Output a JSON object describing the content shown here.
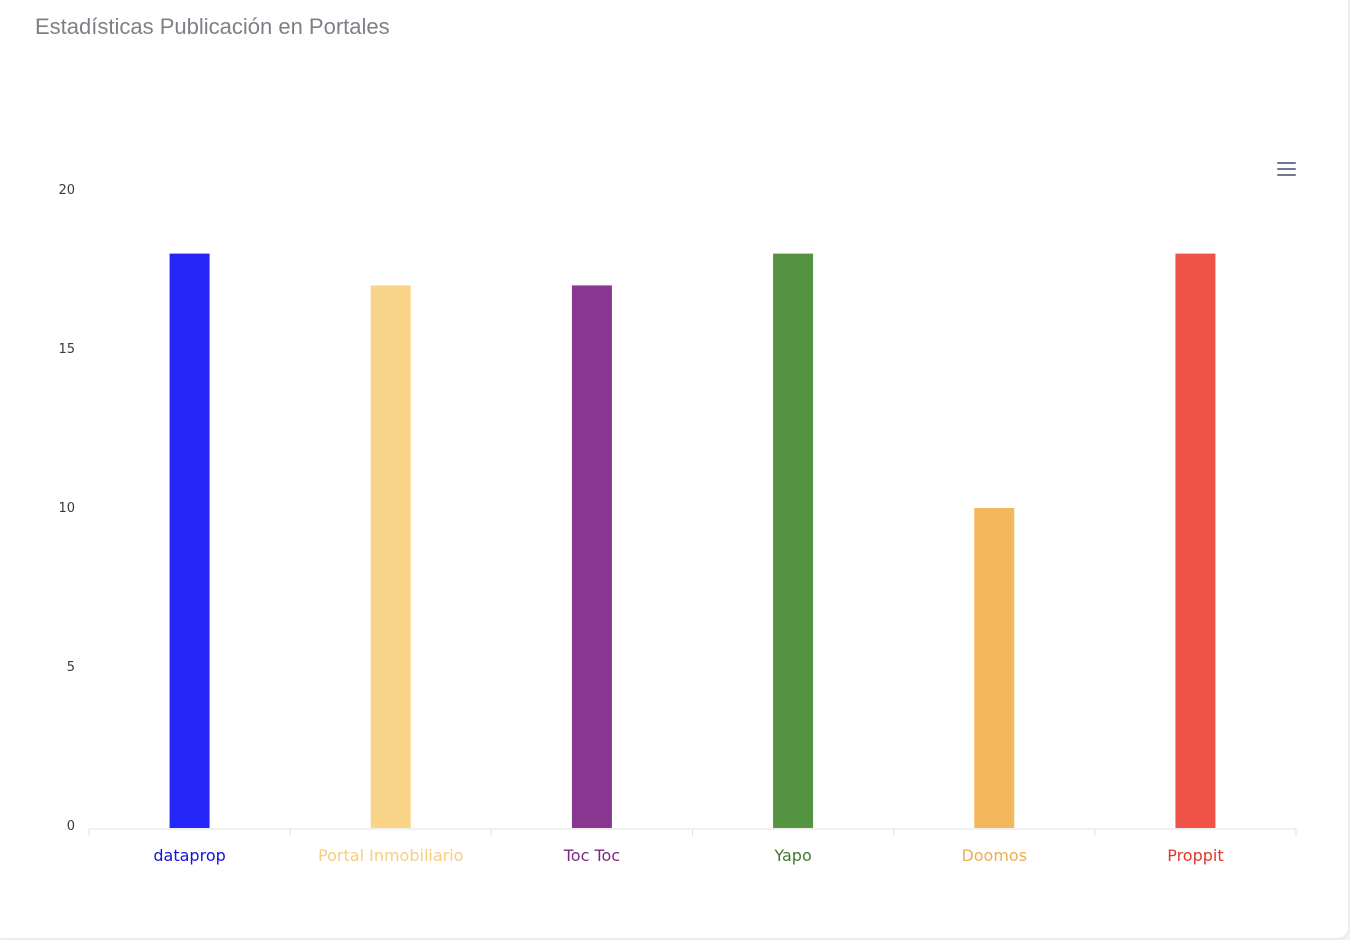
{
  "header": {
    "title": "Estadísticas Publicación en Portales"
  },
  "toolbar": {
    "menu_icon": "hamburger-menu-icon"
  },
  "chart_data": {
    "type": "bar",
    "title": "Estadísticas Publicación en Portales",
    "xlabel": "",
    "ylabel": "",
    "ylim": [
      0,
      20
    ],
    "yticks": [
      0,
      5,
      10,
      15,
      20
    ],
    "grid": false,
    "categories": [
      "dataprop",
      "Portal Inmobiliario",
      "Toc Toc",
      "Yapo",
      "Doomos",
      "Proppit"
    ],
    "values": [
      18,
      17,
      17,
      18,
      10,
      18
    ],
    "colors": [
      "#2525f7",
      "#f9d387",
      "#88368f",
      "#549342",
      "#f5b75b",
      "#ef5246"
    ],
    "label_colors": [
      "#1212d9",
      "#f8cd7e",
      "#7a2a80",
      "#3d7a2e",
      "#f0ad4e",
      "#e0352a"
    ]
  }
}
